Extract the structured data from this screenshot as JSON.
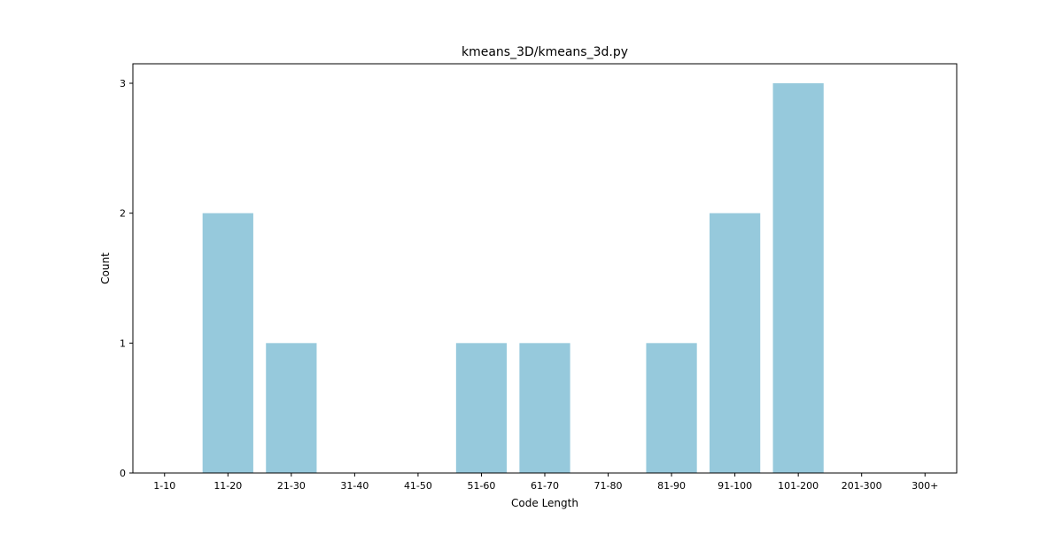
{
  "chart_data": {
    "type": "bar",
    "title": "kmeans_3D/kmeans_3d.py",
    "xlabel": "Code Length",
    "ylabel": "Count",
    "categories": [
      "1-10",
      "11-20",
      "21-30",
      "31-40",
      "41-50",
      "51-60",
      "61-70",
      "71-80",
      "81-90",
      "91-100",
      "101-200",
      "201-300",
      "300+"
    ],
    "values": [
      0,
      2,
      1,
      0,
      0,
      1,
      1,
      0,
      1,
      2,
      3,
      0,
      0
    ],
    "ylim": [
      0,
      3.15
    ],
    "yticks": [
      0,
      1,
      2,
      3
    ],
    "bar_color": "#96c9dc",
    "grid": false,
    "legend": "none"
  }
}
